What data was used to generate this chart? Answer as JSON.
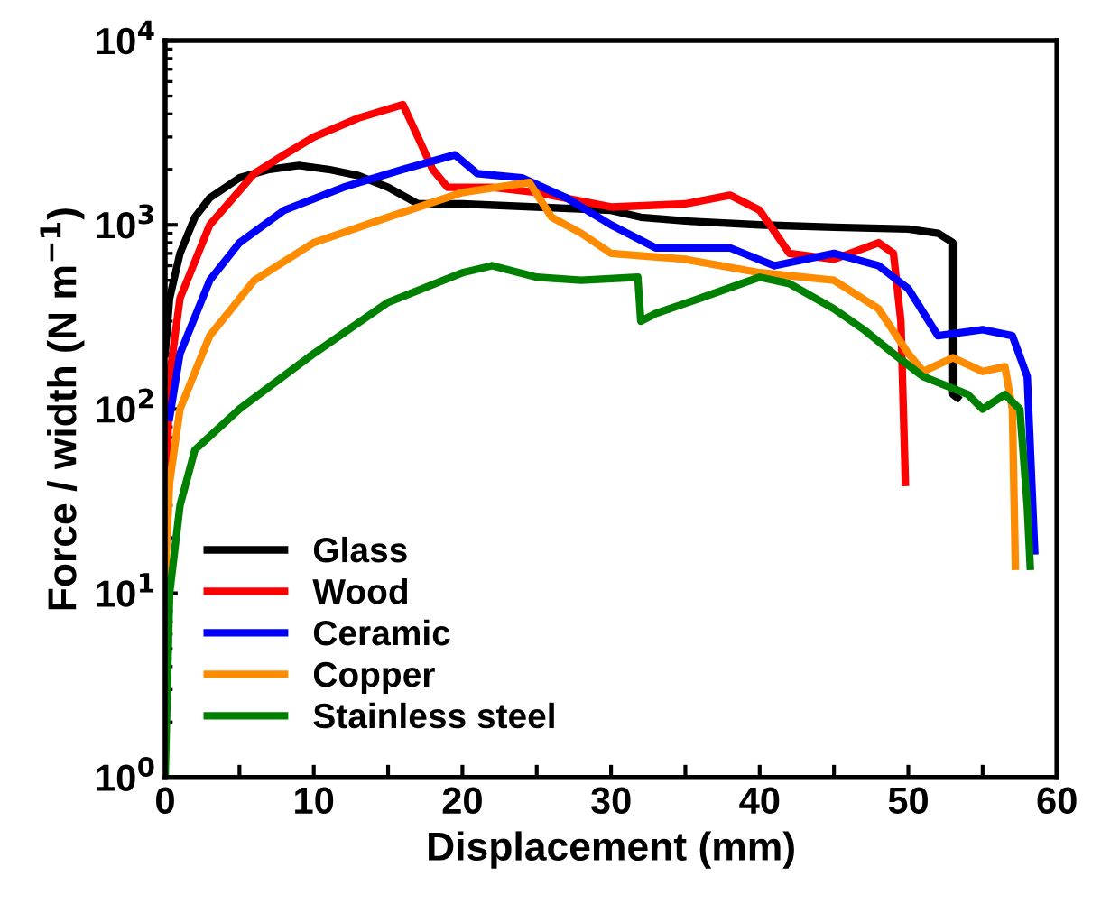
{
  "chart_data": {
    "type": "line",
    "xlabel": "Displacement (mm)",
    "ylabel": "Force / width (N m$^{−1}$)",
    "log": "y",
    "xlim": [
      0,
      60
    ],
    "ylim": [
      1,
      10000
    ],
    "xticks": [
      0,
      {
        "value": 5,
        "label": null
      },
      10,
      {
        "value": 15,
        "label": null
      },
      20,
      {
        "value": 25,
        "label": null
      },
      30,
      {
        "value": 35,
        "label": null
      },
      40,
      {
        "value": 45,
        "label": null
      },
      50,
      {
        "value": 55,
        "label": null
      },
      60
    ],
    "yticks": [
      {
        "value": 1,
        "label": "10$^{0}$"
      },
      {
        "value": 10,
        "label": "10$^{1}$"
      },
      {
        "value": 100,
        "label": "10$^{2}$"
      },
      {
        "value": 1000,
        "label": "10$^{3}$"
      },
      {
        "value": 10000,
        "label": "10$^{4}$"
      }
    ],
    "legend": "bottom left",
    "grid": false,
    "marker": "none",
    "line_style": "solid",
    "series": [
      {
        "name": "Glass",
        "color": "#000000",
        "x": [
          0,
          0.3,
          1,
          2,
          3,
          5,
          7,
          9,
          11,
          13,
          15,
          17,
          20,
          25,
          30,
          32,
          35,
          40,
          45,
          50,
          52,
          53,
          53,
          53.3
        ],
        "values": [
          200,
          400,
          700,
          1100,
          1400,
          1800,
          2000,
          2100,
          2000,
          1850,
          1600,
          1300,
          1300,
          1250,
          1200,
          1100,
          1050,
          1000,
          970,
          950,
          900,
          800,
          120,
          115
        ]
      },
      {
        "name": "Wood",
        "color": "#ff0000",
        "x": [
          0,
          0.3,
          1,
          3,
          6,
          8,
          10,
          13,
          16,
          17,
          18,
          19,
          22,
          25,
          30,
          35,
          38,
          40,
          42,
          45,
          48,
          49,
          49.5,
          49.8
        ],
        "values": [
          20,
          150,
          400,
          1000,
          1900,
          2400,
          3000,
          3800,
          4500,
          3000,
          2000,
          1600,
          1600,
          1500,
          1250,
          1300,
          1450,
          1200,
          700,
          650,
          800,
          700,
          300,
          40
        ]
      },
      {
        "name": "Ceramic",
        "color": "#0000ff",
        "x": [
          0.3,
          1,
          3,
          5,
          8,
          12,
          16,
          19.5,
          21,
          24,
          27,
          30,
          33,
          38,
          41,
          45,
          48,
          50,
          52,
          55,
          57,
          58,
          58.5
        ],
        "values": [
          90,
          200,
          500,
          800,
          1200,
          1600,
          2000,
          2400,
          1900,
          1800,
          1400,
          1000,
          750,
          750,
          600,
          700,
          600,
          450,
          250,
          270,
          250,
          150,
          17
        ]
      },
      {
        "name": "Copper",
        "color": "#ff8c00",
        "x": [
          0,
          0.3,
          1,
          3,
          6,
          10,
          15,
          20,
          24.5,
          26,
          28,
          30,
          35,
          40,
          45,
          48,
          50,
          51,
          53,
          55,
          56.5,
          57,
          57.2
        ],
        "values": [
          12,
          40,
          100,
          250,
          500,
          800,
          1100,
          1500,
          1700,
          1100,
          900,
          700,
          650,
          550,
          500,
          350,
          200,
          160,
          190,
          160,
          170,
          100,
          14
        ]
      },
      {
        "name": "Stainless steel",
        "color": "#008000",
        "x": [
          0,
          0.3,
          1,
          2,
          5,
          10,
          15,
          20,
          22,
          25,
          28,
          31.8,
          32,
          33,
          36,
          40,
          42,
          45,
          47,
          49,
          51,
          54,
          55,
          56.5,
          57.5,
          58,
          58.2
        ],
        "values": [
          1,
          10,
          30,
          60,
          100,
          200,
          380,
          550,
          600,
          520,
          500,
          520,
          300,
          330,
          400,
          520,
          480,
          350,
          270,
          200,
          150,
          120,
          100,
          120,
          100,
          30,
          14
        ]
      }
    ]
  }
}
